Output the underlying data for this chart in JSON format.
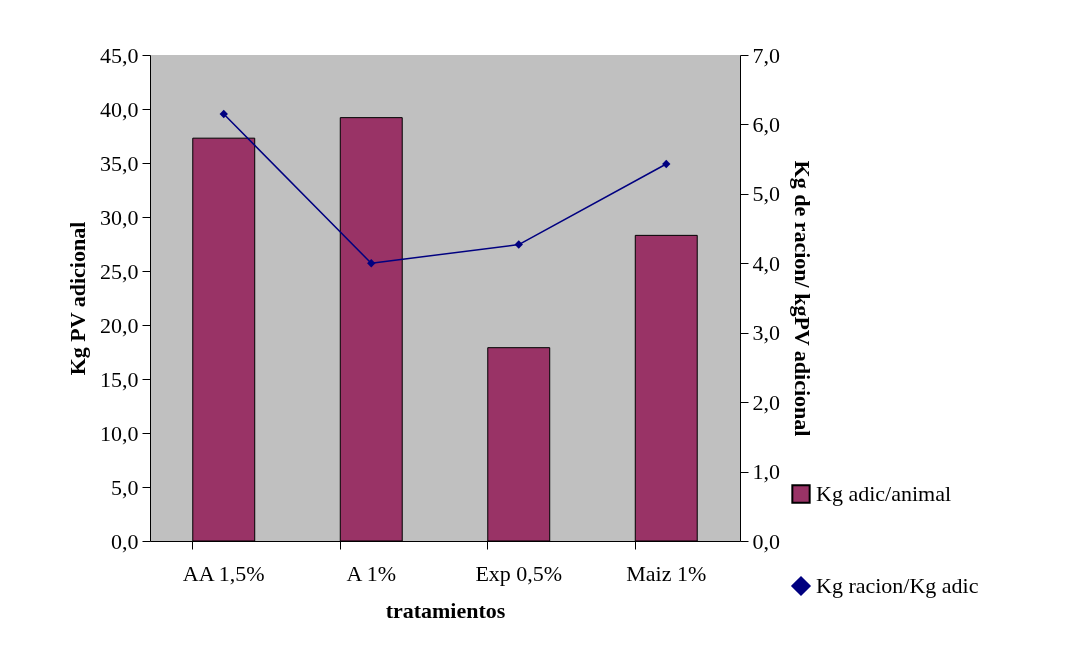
{
  "chart_data": {
    "type": "bar",
    "categories": [
      "AA 1,5%",
      "A 1%",
      "Exp 0,5%",
      "Maiz 1%"
    ],
    "xlabel": "tratamientos",
    "ylabel": "Kg PV adicional",
    "y2label": "Kg de racion/ kgPV adicional",
    "series": [
      {
        "name": "Kg adic/animal",
        "color": "#993366",
        "values": [
          37.3,
          39.2,
          17.9,
          28.3
        ]
      },
      {
        "name": "Kg racion/Kg adic",
        "type": "line",
        "axis": "y2",
        "color": "#000080",
        "marker": "diamond",
        "values": [
          6.15,
          4.0,
          4.27,
          5.43
        ]
      }
    ],
    "ylim": [
      0,
      45
    ],
    "yticks": [
      {
        "value": 0,
        "label": "0,0"
      },
      {
        "value": 5,
        "label": "5,0"
      },
      {
        "value": 10,
        "label": "10,0"
      },
      {
        "value": 15,
        "label": "15,0"
      },
      {
        "value": 20,
        "label": "20,0"
      },
      {
        "value": 25,
        "label": "25,0"
      },
      {
        "value": 30,
        "label": "30,0"
      },
      {
        "value": 35,
        "label": "35,0"
      },
      {
        "value": 40,
        "label": "40,0"
      },
      {
        "value": 45,
        "label": "45,0"
      }
    ],
    "y2lim": [
      0,
      7
    ],
    "y2ticks": [
      {
        "value": 0,
        "label": "0,0"
      },
      {
        "value": 1,
        "label": "1,0"
      },
      {
        "value": 2,
        "label": "2,0"
      },
      {
        "value": 3,
        "label": "3,0"
      },
      {
        "value": 4,
        "label": "4,0"
      },
      {
        "value": 5,
        "label": "5,0"
      },
      {
        "value": 6,
        "label": "6,0"
      },
      {
        "value": 7,
        "label": "7,0"
      }
    ],
    "grid": false,
    "legend": "bottom right"
  }
}
